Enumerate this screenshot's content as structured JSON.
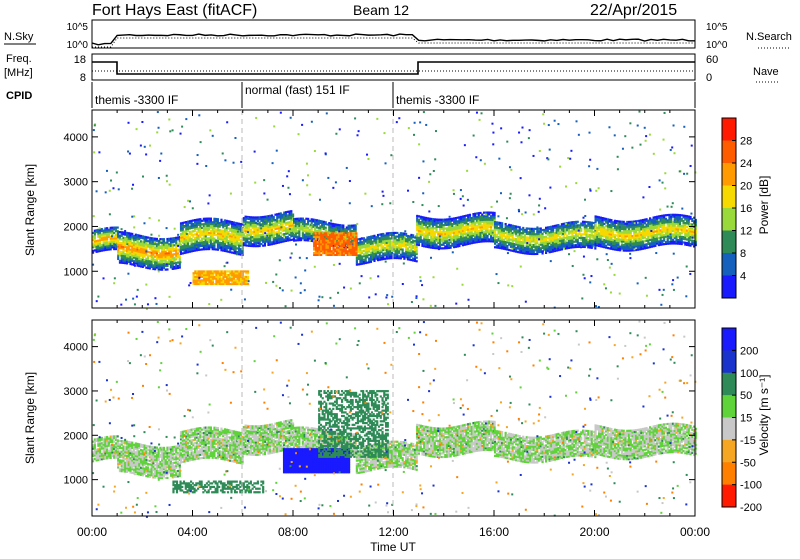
{
  "header": {
    "station": "Fort Hays East (fitACF)",
    "beam": "Beam 12",
    "date": "22/Apr/2015"
  },
  "top_panels": {
    "nsky_label": "N.Sky",
    "nsearch_label": "N.Search",
    "freq_label_1": "Freq.",
    "freq_label_2": "[MHz]",
    "nave_label": "Nave",
    "cpid_label": "CPID",
    "noise_ticks_left": [
      "10^5",
      "10^0"
    ],
    "noise_ticks_right": [
      "10^5",
      "10^0"
    ],
    "freq_ticks": [
      "18",
      "8"
    ],
    "nave_ticks": [
      "60",
      "0"
    ],
    "cpid_segments": [
      {
        "label": "themis -3300 IF",
        "start_h": 0,
        "end_h": 6
      },
      {
        "label": "normal (fast) 151 IF",
        "start_h": 6,
        "end_h": 12
      },
      {
        "label": "themis -3300 IF",
        "start_h": 12,
        "end_h": 24
      }
    ]
  },
  "chart_data": [
    {
      "type": "heatmap",
      "name": "Power",
      "ylabel": "Slant Range [km]",
      "xlim_hours": [
        0,
        24
      ],
      "ylim_km": [
        180,
        4600
      ],
      "yticks": [
        "4000",
        "3000",
        "2000",
        "1000"
      ],
      "colorbar_label": "Power [dB]",
      "colorbar_ticks": [
        "28",
        "24",
        "20",
        "16",
        "12",
        "8",
        "4"
      ],
      "colorbar_colors": [
        "#ff1a00",
        "#ff5c00",
        "#ff9b00",
        "#f5d900",
        "#9ad93a",
        "#2e8b57",
        "#1560bd",
        "#1a1aff"
      ]
    },
    {
      "type": "heatmap",
      "name": "Velocity",
      "ylabel": "Slant Range [km]",
      "xlim_hours": [
        0,
        24
      ],
      "ylim_km": [
        180,
        4600
      ],
      "yticks": [
        "4000",
        "3000",
        "2000",
        "1000"
      ],
      "xticks": [
        "00:00",
        "04:00",
        "08:00",
        "12:00",
        "16:00",
        "20:00",
        "00:00"
      ],
      "xlabel": "Time UT",
      "colorbar_label": "Velocity [m s⁻¹]",
      "colorbar_ticks": [
        "200",
        "100",
        "50",
        "15",
        "-15",
        "-50",
        "-100",
        "-200"
      ],
      "colorbar_colors": [
        "#1a1aff",
        "#1a33cc",
        "#2e8b57",
        "#5fd33a",
        "#c8c8c8",
        "#f5a623",
        "#ff7f00",
        "#ff1a00"
      ]
    }
  ],
  "power_bands": [
    {
      "start_h": 0.0,
      "end_h": 1.0,
      "center_km": 1650,
      "thick_km": 500,
      "peak": 20
    },
    {
      "start_h": 1.0,
      "end_h": 3.5,
      "center_km": 1450,
      "thick_km": 700,
      "peak": 22
    },
    {
      "start_h": 3.5,
      "end_h": 6.0,
      "center_km": 1750,
      "thick_km": 700,
      "peak": 18
    },
    {
      "start_h": 6.0,
      "end_h": 8.0,
      "center_km": 1950,
      "thick_km": 650,
      "peak": 18
    },
    {
      "start_h": 8.0,
      "end_h": 10.5,
      "center_km": 1850,
      "thick_km": 500,
      "peak": 14
    },
    {
      "start_h": 10.5,
      "end_h": 12.9,
      "center_km": 1500,
      "thick_km": 600,
      "peak": 16
    },
    {
      "start_h": 12.9,
      "end_h": 16.0,
      "center_km": 1900,
      "thick_km": 650,
      "peak": 18
    },
    {
      "start_h": 16.0,
      "end_h": 20.0,
      "center_km": 1750,
      "thick_km": 600,
      "peak": 16
    },
    {
      "start_h": 20.0,
      "end_h": 24.0,
      "center_km": 1850,
      "thick_km": 650,
      "peak": 18
    }
  ],
  "power_patches": [
    {
      "start_h": 4.0,
      "end_h": 6.2,
      "lo_km": 700,
      "hi_km": 1000,
      "peak": 24
    },
    {
      "start_h": 8.8,
      "end_h": 10.5,
      "lo_km": 1350,
      "hi_km": 1850,
      "peak": 28
    }
  ],
  "velocity_patches": [
    {
      "start_h": 3.2,
      "end_h": 6.8,
      "lo_km": 700,
      "hi_km": 950,
      "value": 50
    },
    {
      "start_h": 7.6,
      "end_h": 10.2,
      "lo_km": 1150,
      "hi_km": 1700,
      "value": 200
    },
    {
      "start_h": 9.0,
      "end_h": 11.8,
      "lo_km": 1500,
      "hi_km": 3000,
      "value": 50
    }
  ]
}
